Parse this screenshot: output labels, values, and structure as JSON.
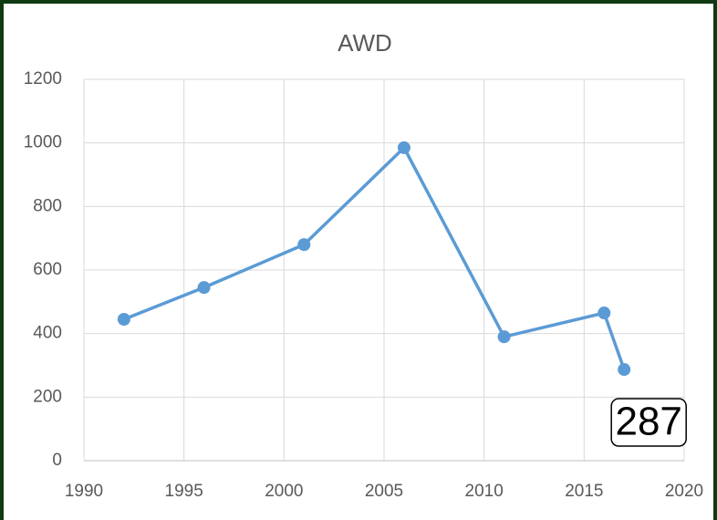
{
  "chart_data": {
    "type": "line",
    "title": "AWD",
    "x": [
      1992,
      1996,
      2001,
      2006,
      2011,
      2016,
      2017
    ],
    "series": [
      {
        "name": "AWD",
        "color": "#5b9bd5",
        "values": [
          445,
          545,
          680,
          985,
          390,
          465,
          287
        ]
      }
    ],
    "xlim": [
      1990,
      2020
    ],
    "xticks": [
      1990,
      1995,
      2000,
      2005,
      2010,
      2015,
      2020
    ],
    "ylim": [
      0,
      1200
    ],
    "yticks": [
      0,
      200,
      400,
      600,
      800,
      1000,
      1200
    ],
    "grid": true,
    "data_labels": "last"
  }
}
